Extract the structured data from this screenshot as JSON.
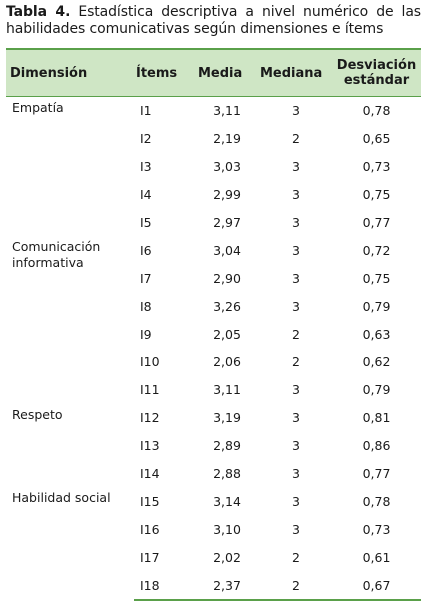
{
  "caption": {
    "label": "Tabla 4.",
    "text": " Estadística descriptiva a nivel numérico de las habilidades comunicativas según dimensiones e ítems"
  },
  "headers": {
    "dimension": "Dimensión",
    "items": "Ítems",
    "media": "Media",
    "mediana": "Mediana",
    "sd": "Desviación estándar"
  },
  "groups": [
    {
      "dimension": "Empatía",
      "rows": [
        {
          "item": "I1",
          "media": "3,11",
          "mediana": "3",
          "sd": "0,78"
        },
        {
          "item": "I2",
          "media": "2,19",
          "mediana": "2",
          "sd": "0,65"
        },
        {
          "item": "I3",
          "media": "3,03",
          "mediana": "3",
          "sd": "0,73"
        },
        {
          "item": "I4",
          "media": "2,99",
          "mediana": "3",
          "sd": "0,75"
        },
        {
          "item": "I5",
          "media": "2,97",
          "mediana": "3",
          "sd": "0,77"
        }
      ]
    },
    {
      "dimension": "Comunicación informativa",
      "rows": [
        {
          "item": "I6",
          "media": "3,04",
          "mediana": "3",
          "sd": "0,72"
        },
        {
          "item": "I7",
          "media": "2,90",
          "mediana": "3",
          "sd": "0,75"
        },
        {
          "item": "I8",
          "media": "3,26",
          "mediana": "3",
          "sd": "0,79"
        },
        {
          "item": "I9",
          "media": "2,05",
          "mediana": "2",
          "sd": "0,63"
        },
        {
          "item": "I10",
          "media": "2,06",
          "mediana": "2",
          "sd": "0,62"
        },
        {
          "item": "I11",
          "media": "3,11",
          "mediana": "3",
          "sd": "0,79"
        }
      ]
    },
    {
      "dimension": "Respeto",
      "rows": [
        {
          "item": "I12",
          "media": "3,19",
          "mediana": "3",
          "sd": "0,81"
        },
        {
          "item": "I13",
          "media": "2,89",
          "mediana": "3",
          "sd": "0,86"
        },
        {
          "item": "I14",
          "media": "2,88",
          "mediana": "3",
          "sd": "0,77"
        }
      ]
    },
    {
      "dimension": "Habilidad social",
      "rows": [
        {
          "item": "I15",
          "media": "3,14",
          "mediana": "3",
          "sd": "0,78"
        },
        {
          "item": "I16",
          "media": "3,10",
          "mediana": "3",
          "sd": "0,73"
        },
        {
          "item": "I17",
          "media": "2,02",
          "mediana": "2",
          "sd": "0,61"
        },
        {
          "item": "I18",
          "media": "2,37",
          "mediana": "2",
          "sd": "0,67"
        }
      ]
    }
  ]
}
